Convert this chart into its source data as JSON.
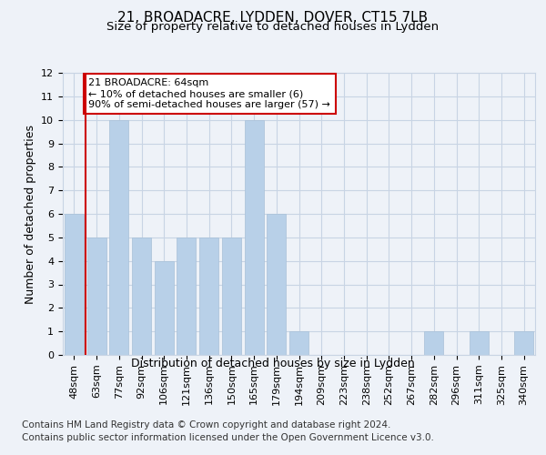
{
  "title1": "21, BROADACRE, LYDDEN, DOVER, CT15 7LB",
  "title2": "Size of property relative to detached houses in Lydden",
  "xlabel": "Distribution of detached houses by size in Lydden",
  "ylabel": "Number of detached properties",
  "categories": [
    "48sqm",
    "63sqm",
    "77sqm",
    "92sqm",
    "106sqm",
    "121sqm",
    "136sqm",
    "150sqm",
    "165sqm",
    "179sqm",
    "194sqm",
    "209sqm",
    "223sqm",
    "238sqm",
    "252sqm",
    "267sqm",
    "282sqm",
    "296sqm",
    "311sqm",
    "325sqm",
    "340sqm"
  ],
  "values": [
    6,
    5,
    10,
    5,
    4,
    5,
    5,
    5,
    10,
    6,
    1,
    0,
    0,
    0,
    0,
    0,
    1,
    0,
    1,
    0,
    1
  ],
  "bar_color": "#b8d0e8",
  "bar_edge_color": "#a8c0d8",
  "highlight_color": "#cc0000",
  "annotation_text": "21 BROADACRE: 64sqm\n← 10% of detached houses are smaller (6)\n90% of semi-detached houses are larger (57) →",
  "annotation_box_color": "#ffffff",
  "annotation_box_edge_color": "#cc0000",
  "vline_bar_index": 1,
  "ylim": [
    0,
    12
  ],
  "yticks": [
    0,
    1,
    2,
    3,
    4,
    5,
    6,
    7,
    8,
    9,
    10,
    11,
    12
  ],
  "footer1": "Contains HM Land Registry data © Crown copyright and database right 2024.",
  "footer2": "Contains public sector information licensed under the Open Government Licence v3.0.",
  "background_color": "#eef2f8",
  "grid_color": "#c8d4e4",
  "title1_fontsize": 11,
  "title2_fontsize": 9.5,
  "xlabel_fontsize": 9,
  "ylabel_fontsize": 9,
  "tick_fontsize": 8,
  "annotation_fontsize": 8,
  "footer_fontsize": 7.5
}
